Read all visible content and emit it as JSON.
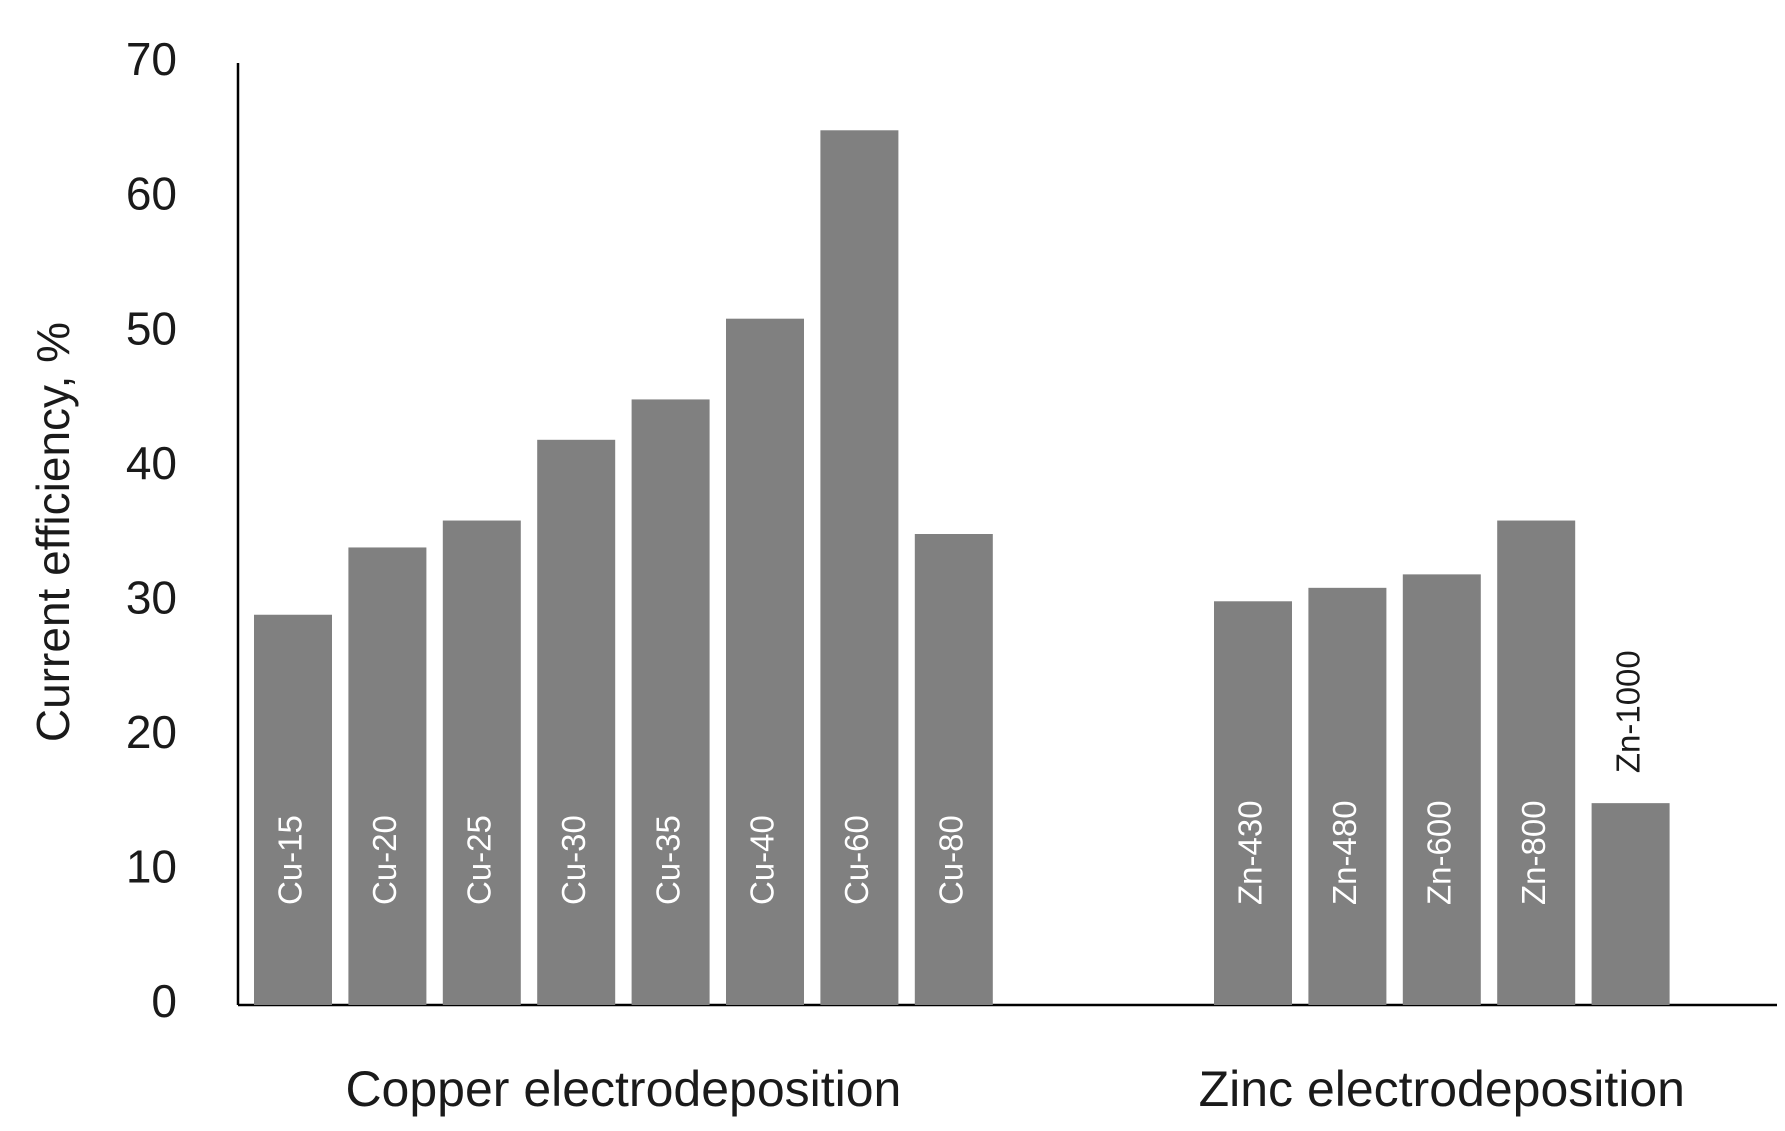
{
  "chart_data": {
    "type": "bar",
    "y_label": "Current efficiency, %",
    "color": "#808080",
    "ylim": [
      0,
      70
    ],
    "yticks": [
      0,
      10,
      20,
      30,
      40,
      50,
      60,
      70
    ],
    "groups": [
      {
        "label": "Copper electrodeposition",
        "categories": [
          "Cu-15",
          "Cu-20",
          "Cu-25",
          "Cu-30",
          "Cu-35",
          "Cu-40",
          "Cu-60",
          "Cu-80"
        ],
        "values": [
          29,
          34,
          36,
          42,
          45,
          51,
          65,
          35
        ]
      },
      {
        "label": "Zinc electrodeposition",
        "categories": [
          "Zn-430",
          "Zn-480",
          "Zn-600",
          "Zn-800",
          "Zn-1000"
        ],
        "values": [
          30,
          31,
          32,
          36,
          15
        ]
      }
    ]
  }
}
